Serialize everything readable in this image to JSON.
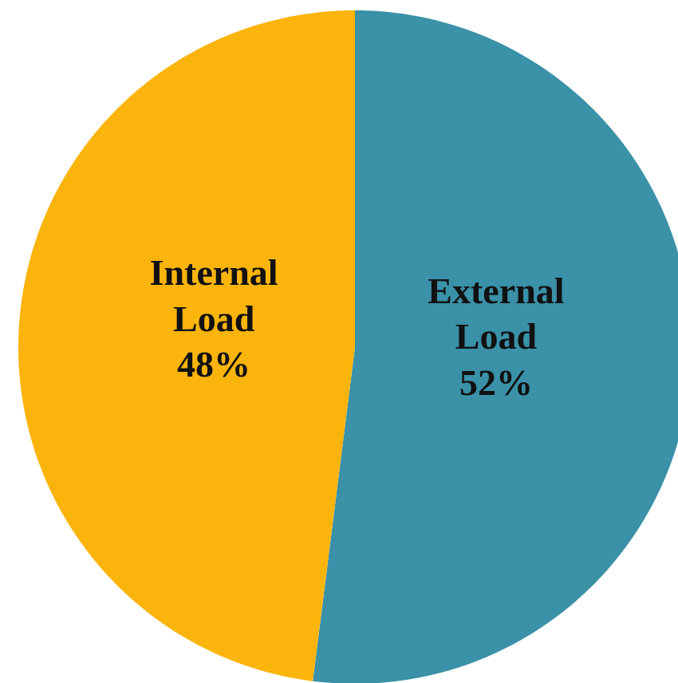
{
  "chart_data": {
    "type": "pie",
    "categories": [
      "External Load",
      "Internal Load"
    ],
    "values": [
      52,
      48
    ],
    "value_labels": [
      "52%",
      "48%"
    ],
    "colors": [
      "#3a91a8",
      "#fbb40c"
    ]
  }
}
